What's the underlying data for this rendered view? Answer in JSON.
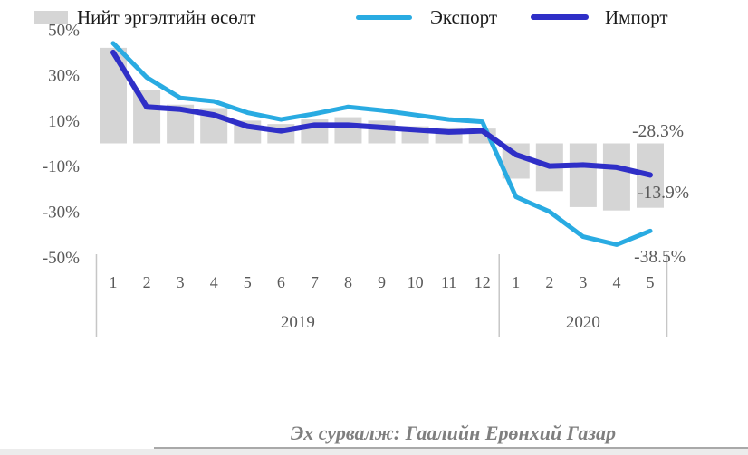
{
  "chart_data": {
    "type": "combo-bar-line",
    "title": "",
    "xlabel": "",
    "ylabel": "",
    "ylim": [
      -50,
      50
    ],
    "grid": false,
    "y_ticks": {
      "labels": [
        "50%",
        "30%",
        "10%",
        "-10%",
        "-30%",
        "-50%"
      ],
      "values": [
        50,
        30,
        10,
        -10,
        -30,
        -50
      ]
    },
    "categories": [
      "1",
      "2",
      "3",
      "4",
      "5",
      "6",
      "7",
      "8",
      "9",
      "10",
      "11",
      "12",
      "1",
      "2",
      "3",
      "4",
      "5"
    ],
    "year_groups": [
      {
        "label": "2019",
        "months": 12
      },
      {
        "label": "2020",
        "months": 5
      }
    ],
    "series": [
      {
        "name": "Нийт эргэлтийн өсөлт",
        "type": "bar",
        "color": "#d5d5d5",
        "values": [
          42,
          23.5,
          17,
          15.5,
          10,
          8.5,
          10.5,
          11.5,
          10,
          7.5,
          7,
          6.5,
          -15.5,
          -21,
          -28,
          -29.5,
          -28.3
        ]
      },
      {
        "name": "Экспорт",
        "type": "line",
        "color": "#29abe2",
        "values": [
          44,
          29,
          20,
          18.5,
          13.5,
          10.5,
          13,
          16,
          14.5,
          12.5,
          10.5,
          9.5,
          -23.5,
          -30,
          -41,
          -44.5,
          -38.5
        ]
      },
      {
        "name": "Импорт",
        "type": "line",
        "color": "#2f2fc7",
        "values": [
          40,
          16,
          15,
          12.5,
          7.5,
          5.5,
          8,
          8,
          7,
          6,
          5,
          5.5,
          -5,
          -10,
          -9.5,
          -10.5,
          -13.9
        ]
      }
    ],
    "annotations": [
      {
        "label": "-28.3%",
        "series": "Нийт эргэлтийн өсөлт"
      },
      {
        "label": "-13.9%",
        "series": "Импорт"
      },
      {
        "label": "-38.5%",
        "series": "Экспорт"
      }
    ],
    "legend_position": "bottom"
  },
  "colors": {
    "axis_text": "#595959",
    "separator": "#c6c6c6",
    "legend_text": "#1a1a1a",
    "source_text": "#7f7f7f"
  },
  "source": {
    "text": "Эх сурвалж: Гаалийн Ерөнхий Газар"
  }
}
